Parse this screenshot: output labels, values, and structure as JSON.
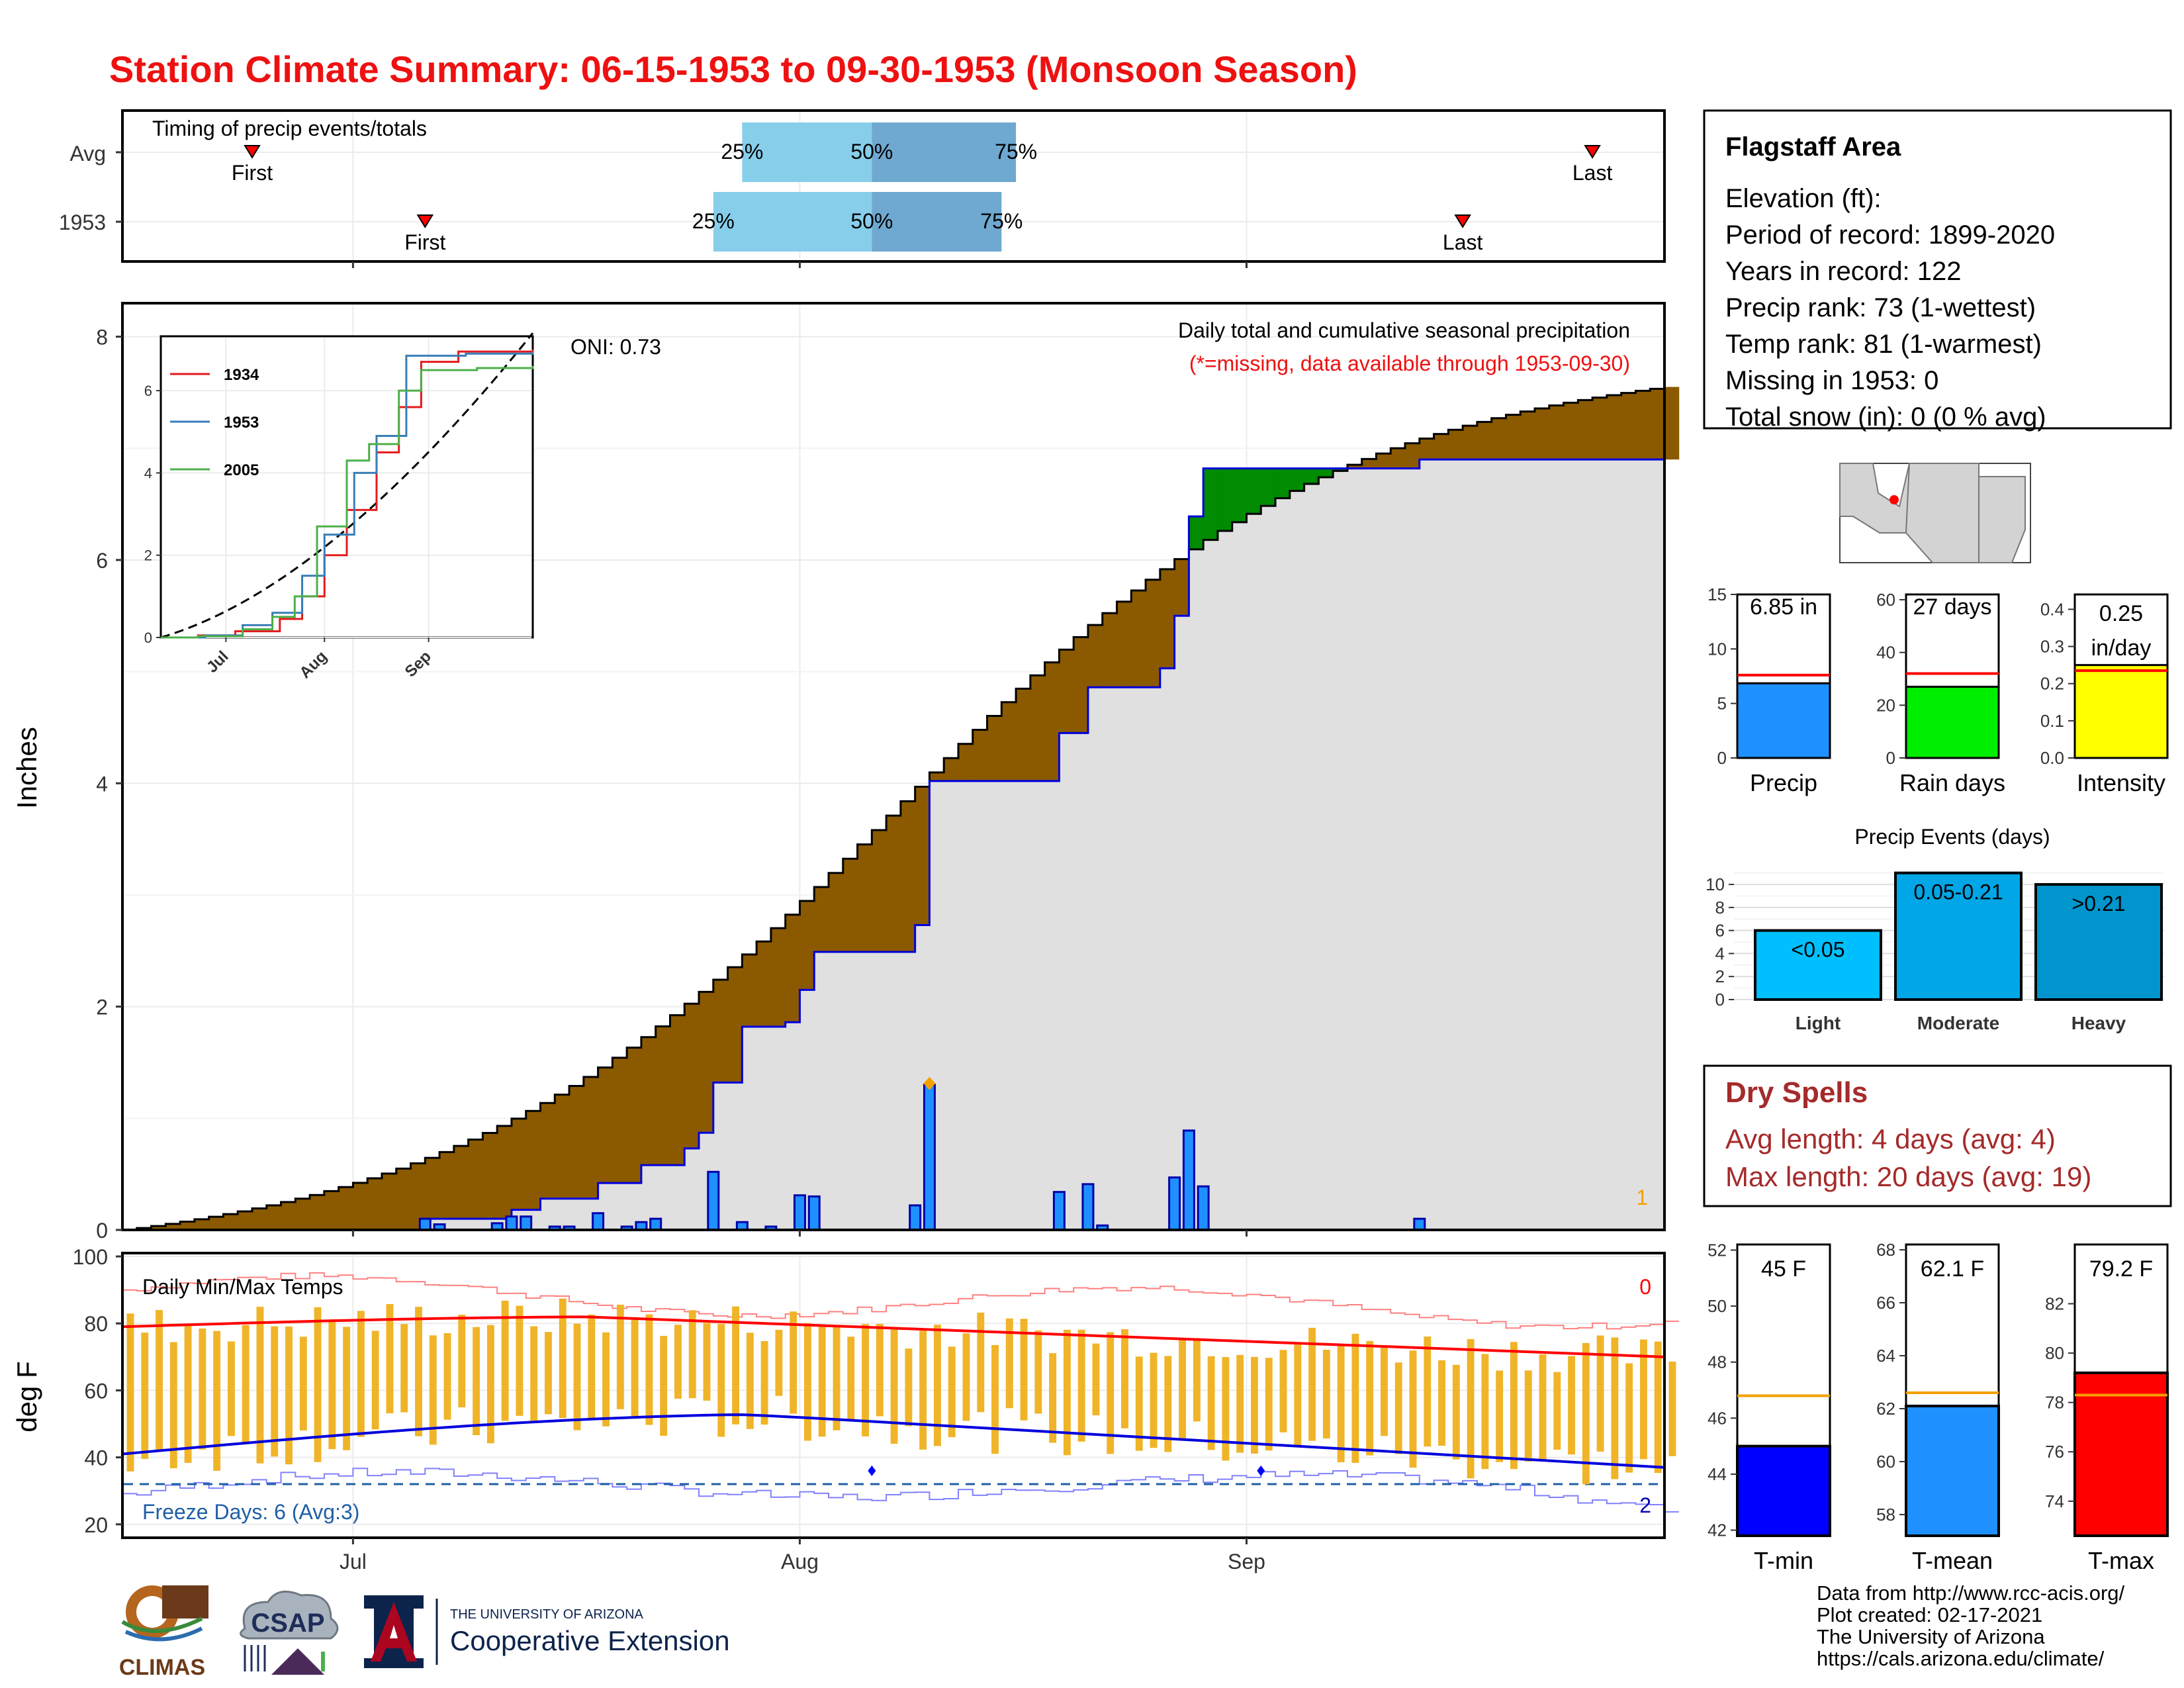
{
  "title": "Station Climate Summary: 06-15-1953 to 09-30-1953 (Monsoon Season)",
  "timing": {
    "label": "Timing of precip events/totals",
    "rows": [
      {
        "name": "Avg",
        "first_label": "First",
        "last_label": "Last",
        "p25": "25%",
        "p50": "50%",
        "p75": "75%",
        "first_date": "1953-06-24",
        "last_date": "1953-09-25",
        "q25_date": "1953-07-28",
        "q50_date": "1953-08-06",
        "q75_date": "1953-08-16"
      },
      {
        "name": "1953",
        "first_label": "First",
        "last_label": "Last",
        "p25": "25%",
        "p50": "50%",
        "p75": "75%",
        "first_date": "1953-07-06",
        "last_date": "1953-09-16",
        "q25_date": "1953-07-26",
        "q50_date": "1953-08-06",
        "q75_date": "1953-08-15"
      }
    ]
  },
  "precip_panel": {
    "ylabel": "Inches",
    "caption": "Daily total and cumulative seasonal precipitation",
    "missing_note": "(*=missing, data available through 1953-09-30)",
    "oni": "ONI: 0.73",
    "corner_count": "1",
    "yticks": [
      "0",
      "2",
      "4",
      "6",
      "8"
    ],
    "ylim": [
      0,
      8.3
    ]
  },
  "inset": {
    "legend": [
      "1934",
      "1953",
      "2005"
    ],
    "colors": [
      "#e41a1c",
      "#377eb8",
      "#4daf4a"
    ],
    "xticks": [
      "Jul",
      "Aug",
      "Sep"
    ],
    "yticks": [
      "0",
      "2",
      "4",
      "6"
    ]
  },
  "temp_panel": {
    "ylabel": "deg F",
    "label": "Daily Min/Max Temps",
    "freeze": "Freeze Days: 6 (Avg:3)",
    "count_top": "0",
    "count_bottom": "2",
    "yticks": [
      "20",
      "40",
      "60",
      "80",
      "100"
    ],
    "xticks": [
      "Jul",
      "Aug",
      "Sep"
    ]
  },
  "station": {
    "name": "Flagstaff Area",
    "lines": [
      "Elevation (ft):",
      "Period of record: 1899-2020",
      "Years in record: 122",
      "Precip rank: 73 (1-wettest)",
      "Temp rank: 81 (1-warmest)",
      "Missing in 1953: 0",
      "Total snow (in): 0 (0 % avg)"
    ]
  },
  "mini_bars": [
    {
      "label": "Precip",
      "text": "6.85 in",
      "value": 6.85,
      "avg": 7.6,
      "yticks": [
        "0",
        "5",
        "10",
        "15"
      ],
      "max": 15,
      "color": "#1e90ff"
    },
    {
      "label": "Rain days",
      "text": "27 days",
      "value": 27,
      "avg": 32,
      "yticks": [
        "0",
        "20",
        "40",
        "60"
      ],
      "max": 62,
      "color": "#00ee00"
    },
    {
      "label": "Intensity",
      "text": "0.25 in/day",
      "value": 0.25,
      "avg": 0.235,
      "yticks": [
        "0.0",
        "0.1",
        "0.2",
        "0.3",
        "0.4"
      ],
      "max": 0.44,
      "color": "#ffff00"
    }
  ],
  "precip_events": {
    "title": "Precip Events (days)",
    "yticks": [
      "0",
      "2",
      "4",
      "6",
      "8",
      "10"
    ],
    "bars": [
      {
        "name": "Light",
        "label": "<0.05",
        "value": 6,
        "color": "#00bfff"
      },
      {
        "name": "Moderate",
        "label": "0.05-0.21",
        "value": 11,
        "color": "#00a6e6"
      },
      {
        "name": "Heavy",
        "label": ">0.21",
        "value": 10,
        "color": "#0095cc"
      }
    ]
  },
  "dry_spells": {
    "title": "Dry Spells",
    "avg": "Avg length: 4 days (avg: 4)",
    "max": "Max length: 20 days (avg: 19)"
  },
  "temp_bars": [
    {
      "label": "T-min",
      "text": "45 F",
      "value": 45,
      "avg": 46.8,
      "ylim": [
        41.8,
        52.2
      ],
      "yticks": [
        "42",
        "44",
        "46",
        "48",
        "50",
        "52"
      ],
      "color": "#0000ff"
    },
    {
      "label": "T-mean",
      "text": "62.1 F",
      "value": 62.1,
      "avg": 62.6,
      "ylim": [
        57.2,
        68.2
      ],
      "yticks": [
        "58",
        "60",
        "62",
        "64",
        "66",
        "68"
      ],
      "color": "#1e90ff"
    },
    {
      "label": "T-max",
      "text": "79.2 F",
      "value": 79.2,
      "avg": 78.3,
      "ylim": [
        72.6,
        84.4
      ],
      "yticks": [
        "74",
        "76",
        "78",
        "80",
        "82"
      ],
      "color": "#ff0000"
    }
  ],
  "credits": [
    "Data from http://www.rcc-acis.org/",
    "Plot created: 02-17-2021",
    "The University of Arizona",
    "https://cals.arizona.edu/climate/"
  ],
  "logos": {
    "climas": "CLIMAS",
    "csap": "CSAP",
    "ua_small": "THE UNIVERSITY OF ARIZONA",
    "ua_big": "Cooperative Extension"
  },
  "chart_data": {
    "type": "area",
    "title": "Daily total and cumulative seasonal precipitation",
    "ylabel": "Inches",
    "xrange": [
      "1953-06-15",
      "1953-09-30"
    ],
    "ylim": [
      0,
      8.3
    ],
    "series": [
      {
        "name": "1953",
        "description_id": "cumulative_1953",
        "cumulative_points": [
          [
            "1953-06-15",
            0
          ],
          [
            "1953-07-06",
            0.1
          ],
          [
            "1953-07-07",
            0.1
          ],
          [
            "1953-07-12",
            0.18
          ],
          [
            "1953-07-14",
            0.28
          ],
          [
            "1953-07-18",
            0.42
          ],
          [
            "1953-07-21",
            0.58
          ],
          [
            "1953-07-24",
            0.73
          ],
          [
            "1953-07-25",
            0.87
          ],
          [
            "1953-07-26",
            1.32
          ],
          [
            "1953-07-28",
            1.82
          ],
          [
            "1953-07-31",
            1.86
          ],
          [
            "1953-08-01",
            2.15
          ],
          [
            "1953-08-02",
            2.49
          ],
          [
            "1953-08-08",
            2.49
          ],
          [
            "1953-08-09",
            2.73
          ],
          [
            "1953-08-10",
            4.02
          ],
          [
            "1953-08-14",
            4.02
          ],
          [
            "1953-08-18",
            4.02
          ],
          [
            "1953-08-19",
            4.45
          ],
          [
            "1953-08-21",
            4.86
          ],
          [
            "1953-08-22",
            4.86
          ],
          [
            "1953-08-26",
            5.03
          ],
          [
            "1953-08-27",
            5.5
          ],
          [
            "1953-08-28",
            6.39
          ],
          [
            "1953-08-29",
            6.82
          ],
          [
            "1953-09-12",
            6.82
          ],
          [
            "1953-09-13",
            6.9
          ],
          [
            "1953-09-30",
            6.9
          ]
        ]
      },
      {
        "name": "Avg",
        "cumulative_start": 0,
        "cumulative_end": 7.55
      }
    ],
    "daily_bars": [
      {
        "date": "1953-07-06",
        "value": 0.1
      },
      {
        "date": "1953-07-07",
        "value": 0.05
      },
      {
        "date": "1953-07-11",
        "value": 0.06
      },
      {
        "date": "1953-07-12",
        "value": 0.12
      },
      {
        "date": "1953-07-13",
        "value": 0.12
      },
      {
        "date": "1953-07-15",
        "value": 0.03
      },
      {
        "date": "1953-07-16",
        "value": 0.03
      },
      {
        "date": "1953-07-18",
        "value": 0.15
      },
      {
        "date": "1953-07-20",
        "value": 0.03
      },
      {
        "date": "1953-07-21",
        "value": 0.07
      },
      {
        "date": "1953-07-22",
        "value": 0.1
      },
      {
        "date": "1953-07-26",
        "value": 0.52
      },
      {
        "date": "1953-07-28",
        "value": 0.07
      },
      {
        "date": "1953-07-30",
        "value": 0.03
      },
      {
        "date": "1953-08-01",
        "value": 0.31
      },
      {
        "date": "1953-08-02",
        "value": 0.3
      },
      {
        "date": "1953-08-09",
        "value": 0.22
      },
      {
        "date": "1953-08-10",
        "value": 1.3
      },
      {
        "date": "1953-08-19",
        "value": 0.34
      },
      {
        "date": "1953-08-21",
        "value": 0.41
      },
      {
        "date": "1953-08-22",
        "value": 0.04
      },
      {
        "date": "1953-08-27",
        "value": 0.47
      },
      {
        "date": "1953-08-28",
        "value": 0.89
      },
      {
        "date": "1953-08-29",
        "value": 0.39
      },
      {
        "date": "1953-09-13",
        "value": 0.1
      }
    ],
    "temps": {
      "ylim": [
        16,
        101
      ],
      "freeze_line": 32,
      "avg_max_start": 79,
      "avg_max_peak": 82,
      "avg_max_end": 70,
      "avg_min_start": 41,
      "avg_min_peak": 53,
      "avg_min_end": 37
    }
  }
}
